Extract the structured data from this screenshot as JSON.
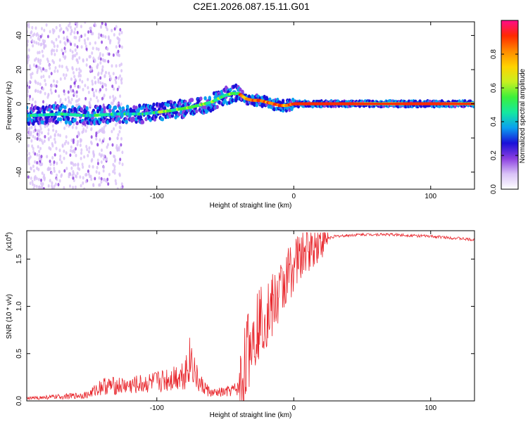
{
  "title": "C2E1.2026.087.15.11.G01",
  "chart_data": [
    {
      "type": "heatmap",
      "name": "spectrogram",
      "xlabel": "Height of straight line (km)",
      "ylabel": "Frequency (Hz)",
      "xlim": [
        -195,
        132
      ],
      "ylim": [
        -50,
        48
      ],
      "xticks": [
        -100,
        0,
        100
      ],
      "yticks": [
        -40,
        -20,
        0,
        20,
        40
      ],
      "grid": false,
      "colorbar": {
        "label": "Normalized spectral amplitude",
        "range": [
          0,
          1
        ],
        "ticks": [
          0.0,
          0.2,
          0.4,
          0.6,
          0.8
        ],
        "colors": [
          "#ffffff",
          "#d9c2f7",
          "#8b3fe0",
          "#1a10d8",
          "#0aa0f0",
          "#14e8a0",
          "#3cf03c",
          "#c8f020",
          "#ffd200",
          "#ff8a00",
          "#ff2a00",
          "#ff0a8a"
        ]
      },
      "ridge": {
        "height_km": [
          -195,
          -170,
          -150,
          -130,
          -110,
          -90,
          -75,
          -60,
          -50,
          -45,
          -40,
          -35,
          -30,
          -25,
          -20,
          -15,
          -10,
          -5,
          0,
          10,
          50,
          100,
          132
        ],
        "frequency_hz": [
          -7,
          -6,
          -7,
          -6,
          -6,
          -4,
          -2,
          1,
          5,
          6,
          6,
          3,
          2,
          2,
          1,
          0,
          -1,
          -1,
          0,
          0,
          0,
          0,
          0
        ]
      }
    },
    {
      "type": "line",
      "name": "snr",
      "xlabel": "Height of straight line (km)",
      "ylabel": "SNR (10 * v/v)",
      "yscale_label": "(x10",
      "yscale_exp": "4",
      "xlim": [
        -195,
        132
      ],
      "ylim": [
        0,
        1.8
      ],
      "xticks": [
        -100,
        0,
        100
      ],
      "yticks": [
        0.0,
        0.5,
        1.0,
        1.5
      ],
      "line_color": "#e8242a",
      "envelope": {
        "height_km": [
          -195,
          -160,
          -150,
          -140,
          -120,
          -100,
          -90,
          -80,
          -75,
          -70,
          -60,
          -50,
          -40,
          -38,
          -35,
          -30,
          -25,
          -20,
          -15,
          -10,
          -5,
          0,
          10,
          20,
          30,
          50,
          70,
          100,
          120,
          132
        ],
        "snr": [
          0.02,
          0.04,
          0.05,
          0.12,
          0.12,
          0.15,
          0.18,
          0.22,
          0.35,
          0.15,
          0.06,
          0.07,
          0.1,
          0.2,
          0.45,
          0.7,
          0.85,
          0.92,
          1.0,
          1.15,
          1.3,
          1.45,
          1.6,
          1.7,
          1.74,
          1.76,
          1.76,
          1.74,
          1.72,
          1.7
        ]
      }
    }
  ]
}
